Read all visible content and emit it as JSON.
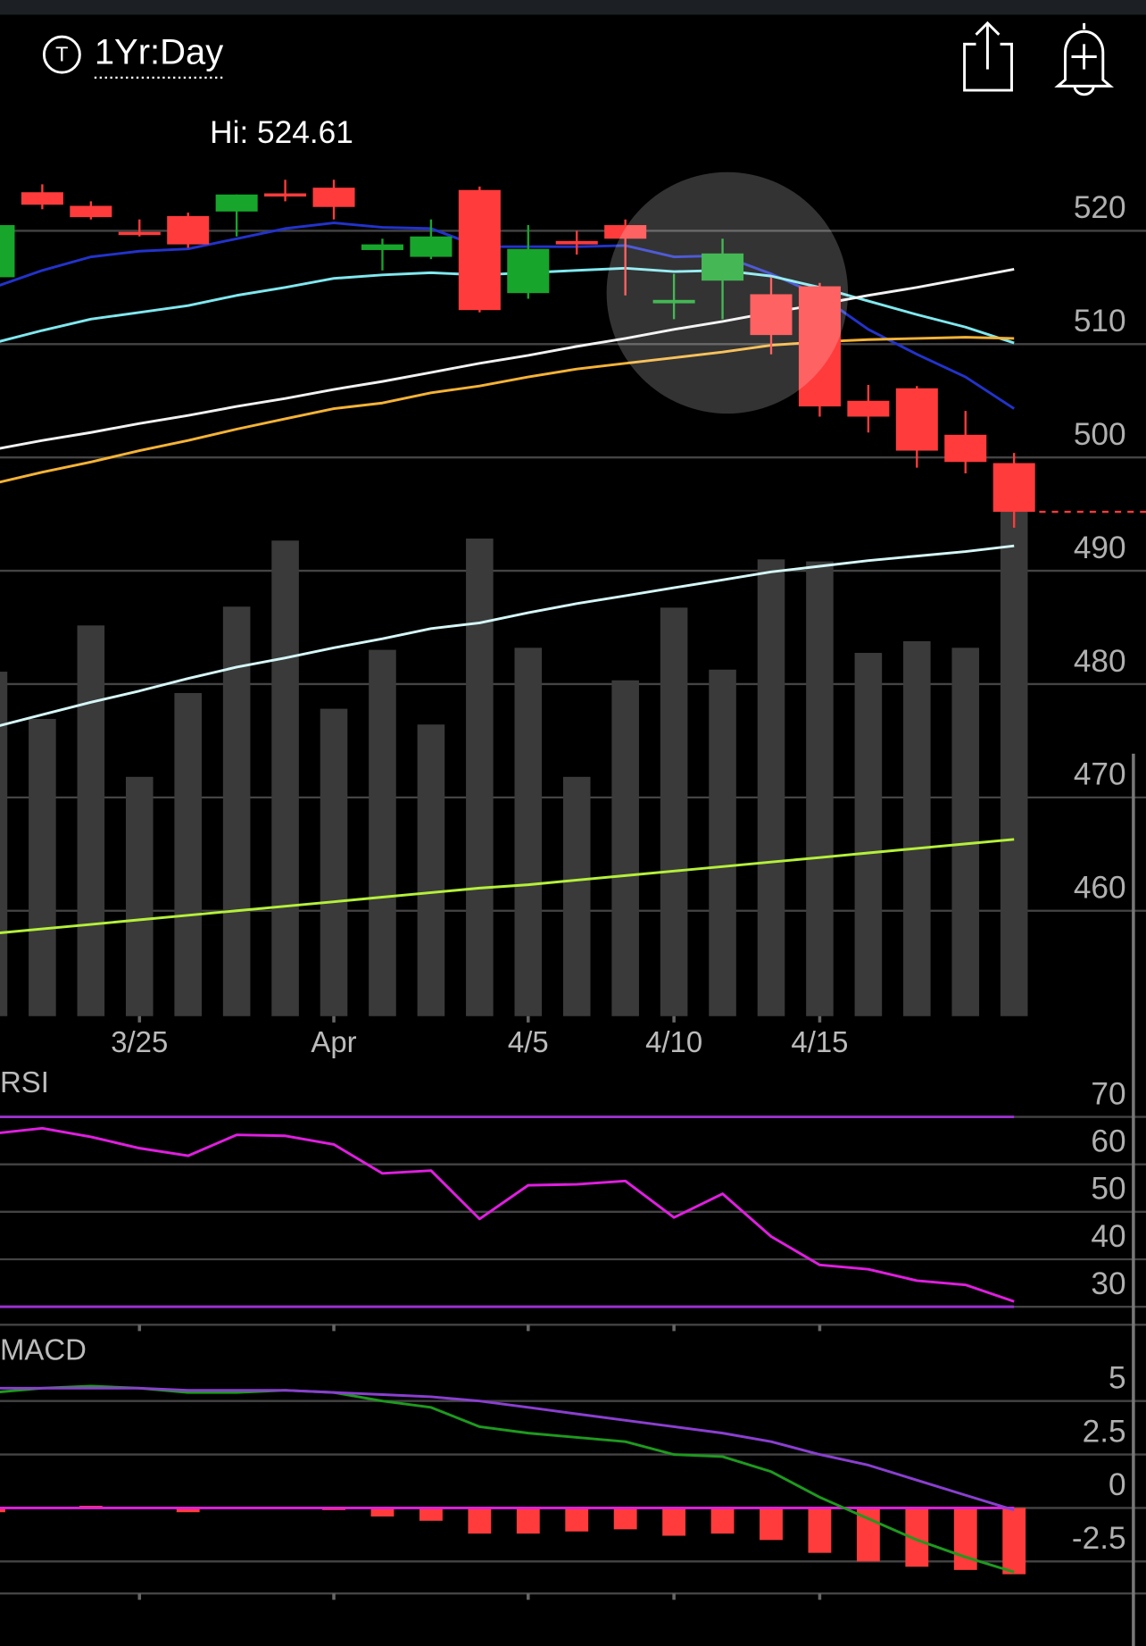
{
  "header": {
    "icon_label": "T",
    "timeframe": "1Yr:Day"
  },
  "chart_data": [
    {
      "type": "candlestick",
      "annotation": "Hi: 524.61",
      "categories": [
        null,
        null,
        null,
        "3/25",
        null,
        null,
        null,
        "Apr",
        null,
        null,
        null,
        "4/5",
        null,
        null,
        "4/10",
        null,
        null,
        "4/15",
        null,
        null,
        null,
        null
      ],
      "open": [
        515.9,
        523.4,
        522.2,
        519.9,
        521.3,
        521.7,
        523.3,
        523.8,
        518.3,
        517.7,
        523.6,
        514.5,
        519.1,
        520.5,
        513.6,
        515.6,
        514.4,
        515.1,
        505.0,
        506.1,
        502.0,
        499.5
      ],
      "high": [
        520.7,
        524.1,
        522.6,
        521.0,
        521.6,
        523.2,
        524.5,
        524.5,
        519.3,
        521.0,
        523.9,
        520.5,
        520.0,
        521.0,
        516.2,
        519.3,
        515.9,
        515.4,
        506.4,
        506.3,
        504.1,
        500.4
      ],
      "low": [
        515.7,
        521.9,
        521.0,
        519.5,
        518.5,
        519.5,
        522.6,
        521.0,
        516.5,
        517.5,
        512.8,
        514.0,
        517.9,
        514.3,
        512.2,
        512.2,
        509.1,
        503.6,
        502.2,
        499.1,
        498.6,
        493.8
      ],
      "close": [
        520.5,
        522.3,
        521.2,
        519.7,
        518.8,
        523.2,
        523.1,
        522.1,
        518.8,
        519.5,
        513.0,
        518.4,
        518.8,
        519.3,
        513.9,
        518.0,
        510.8,
        504.5,
        503.6,
        500.6,
        499.6,
        495.2
      ],
      "up_color": "#17a52b",
      "down_color": "#ff3b3b",
      "series": [
        {
          "color": "#2233cc",
          "values": [
            515.0,
            516.5,
            517.7,
            518.2,
            518.4,
            519.3,
            520.2,
            520.7,
            520.3,
            520.2,
            518.6,
            518.6,
            518.6,
            518.7,
            517.7,
            517.8,
            516.2,
            514.3,
            511.3,
            509.1,
            507.1,
            504.3
          ]
        },
        {
          "color": "#7fe8ef",
          "values": [
            510.1,
            511.2,
            512.2,
            512.8,
            513.4,
            514.3,
            515.0,
            515.8,
            516.1,
            516.3,
            516.1,
            516.3,
            516.5,
            516.7,
            516.4,
            516.5,
            516.0,
            515.0,
            513.8,
            512.6,
            511.5,
            510.1
          ]
        },
        {
          "color": "#f2f2f2",
          "values": [
            500.7,
            501.5,
            502.2,
            503.0,
            503.7,
            504.5,
            505.2,
            506.0,
            506.7,
            507.5,
            508.3,
            509.0,
            509.8,
            510.5,
            511.3,
            512.0,
            512.8,
            513.5,
            514.3,
            515.0,
            515.8,
            516.6
          ]
        },
        {
          "color": "#f5b335",
          "values": [
            497.7,
            498.7,
            499.6,
            500.6,
            501.5,
            502.5,
            503.4,
            504.3,
            504.8,
            505.7,
            506.3,
            507.1,
            507.8,
            508.3,
            508.8,
            509.3,
            509.9,
            510.2,
            510.4,
            510.5,
            510.6,
            510.5
          ]
        },
        {
          "color": "#d5f7f7",
          "values": [
            476.2,
            477.3,
            478.4,
            479.4,
            480.5,
            481.5,
            482.3,
            483.2,
            484.0,
            484.9,
            485.4,
            486.3,
            487.1,
            487.8,
            488.5,
            489.2,
            489.9,
            490.4,
            490.9,
            491.3,
            491.7,
            492.2
          ]
        },
        {
          "color": "#b5f03a",
          "values": [
            458.0,
            458.4,
            458.8,
            459.2,
            459.6,
            460.0,
            460.4,
            460.8,
            461.2,
            461.6,
            462.0,
            462.3,
            462.7,
            463.1,
            463.5,
            463.9,
            464.3,
            464.7,
            465.1,
            465.5,
            465.9,
            466.3
          ]
        }
      ],
      "volume": {
        "color": "#3a3a3a",
        "ylim": [
          0,
          100
        ],
        "values": [
          67.8,
          58.5,
          76.9,
          47.1,
          63.6,
          80.6,
          93.6,
          60.5,
          72.1,
          57.4,
          94.0,
          72.5,
          47.1,
          66.1,
          80.4,
          68.2,
          89.9,
          89.5,
          71.5,
          73.8,
          72.5,
          100
        ]
      },
      "ylim": [
        450.7,
        531.1
      ],
      "yticks": [
        460,
        470,
        480,
        490,
        500,
        510,
        520
      ],
      "grid": true
    },
    {
      "type": "line",
      "title": "RSI",
      "series": [
        {
          "color": "#e01ee0",
          "values": [
            66.5,
            67.6,
            65.8,
            63.4,
            61.8,
            66.2,
            66.0,
            64.2,
            58.1,
            58.7,
            48.5,
            55.6,
            55.8,
            56.5,
            48.8,
            53.8,
            44.8,
            38.8,
            37.9,
            35.5,
            34.6,
            31.1
          ]
        }
      ],
      "reference_lines": [
        70,
        30
      ],
      "reference_color": "#9b30d0",
      "ylim": [
        26.2,
        75.3
      ],
      "yticks": [
        70,
        60,
        50,
        40,
        30
      ],
      "grid": true
    },
    {
      "type": "macd",
      "title": "MACD",
      "series": [
        {
          "color": "#1e9a1e",
          "values": [
            5.4,
            5.6,
            5.7,
            5.6,
            5.4,
            5.4,
            5.5,
            5.4,
            5.0,
            4.7,
            3.8,
            3.5,
            3.3,
            3.1,
            2.5,
            2.4,
            1.7,
            0.5,
            -0.5,
            -1.5,
            -2.3,
            -3.0
          ]
        },
        {
          "color": "#8a3fd0",
          "values": [
            5.6,
            5.6,
            5.6,
            5.6,
            5.5,
            5.5,
            5.5,
            5.4,
            5.3,
            5.2,
            5.0,
            4.7,
            4.4,
            4.1,
            3.8,
            3.5,
            3.1,
            2.5,
            2.0,
            1.3,
            0.6,
            -0.1
          ]
        }
      ],
      "histogram": {
        "color": "#ff3b3b",
        "values": [
          -0.2,
          0.0,
          0.1,
          0.0,
          -0.2,
          0.0,
          0.0,
          -0.1,
          -0.4,
          -0.6,
          -1.2,
          -1.2,
          -1.1,
          -1.0,
          -1.3,
          -1.2,
          -1.5,
          -2.1,
          -2.5,
          -2.75,
          -2.9,
          -3.1
        ]
      },
      "zero_line_color": "#e020e0",
      "ylim": [
        -4.1,
        6.7
      ],
      "yticks": [
        5,
        2.5,
        0,
        -2.5
      ],
      "grid": true
    }
  ]
}
